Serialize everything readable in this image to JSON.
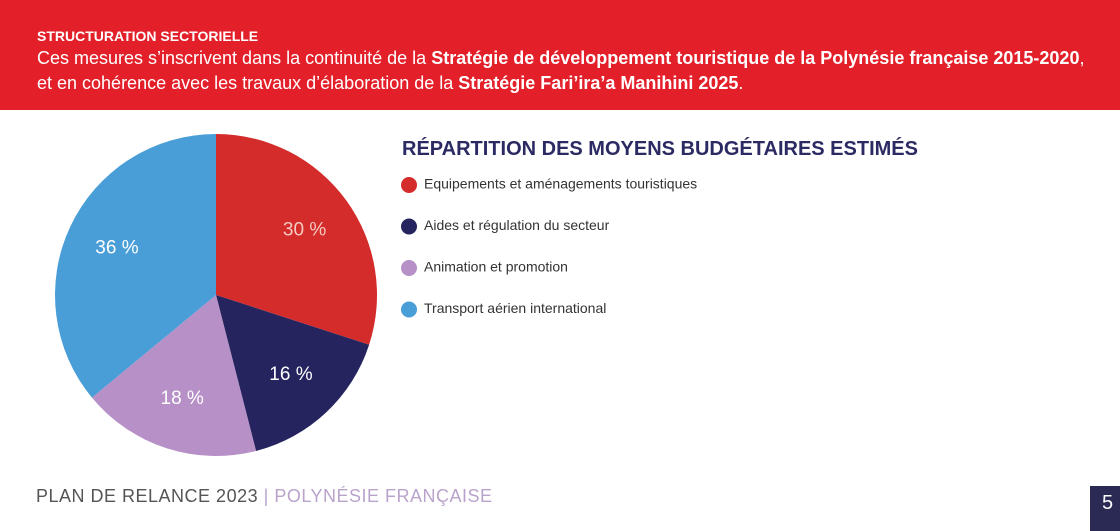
{
  "header": {
    "title": "STRUCTURATION SECTORIELLE",
    "paragraph": [
      {
        "text": "Ces mesures s’inscrivent dans la continuité de la ",
        "bold": false
      },
      {
        "text": "Stratégie de développement touristique de la Polynésie française 2015-2020",
        "bold": true
      },
      {
        "text": ", et en cohérence avec les travaux d’élaboration de la ",
        "bold": false
      },
      {
        "text": "Stratégie Fari’ira’a Manihini 2025",
        "bold": true
      },
      {
        "text": ".",
        "bold": false
      }
    ]
  },
  "chart_data": {
    "type": "pie",
    "title": "RÉPARTITION DES MOYENS BUDGÉTAIRES ESTIMÉS",
    "categories": [
      "Equipements et aménagements touristiques",
      "Aides et régulation du secteur",
      "Animation et promotion",
      "Transport aérien international"
    ],
    "values": [
      30,
      16,
      18,
      36
    ],
    "value_labels": [
      "30 %",
      "16 %",
      "18 %",
      "36 %"
    ],
    "colors": [
      "#d42b2b",
      "#25245f",
      "#b690c6",
      "#4a9ed8"
    ]
  },
  "footer": {
    "left": "PLAN DE RELANCE 2023",
    "separator": "|",
    "right": "POLYNÉSIE FRANÇAISE",
    "page": "5"
  }
}
